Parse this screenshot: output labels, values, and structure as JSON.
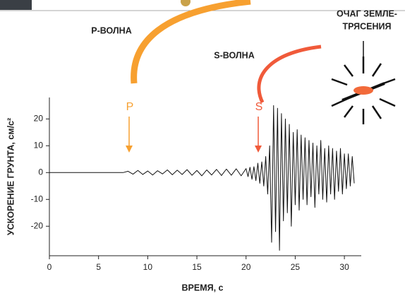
{
  "chart_data": {
    "type": "line",
    "x_label": "ВРЕМЯ, с",
    "y_label": "УСКОРЕНИЕ ГРУНТА, см/с²",
    "annotations": [
      "P-ВОЛНА",
      "S-ВОЛНА",
      "P",
      "S",
      "ОЧАГ ЗЕМЛЕ-",
      "ТРЯСЕНИЯ"
    ],
    "color": "#111111",
    "xlim": [
      0,
      31.5
    ],
    "ylim": [
      -31,
      28
    ],
    "xticks": [
      0,
      5,
      10,
      15,
      20,
      25,
      30
    ],
    "yticks": [
      -20,
      -10,
      0,
      10,
      20
    ],
    "x": [
      0,
      0.5,
      1,
      1.5,
      2,
      2.5,
      3,
      3.5,
      4,
      4.5,
      5,
      5.5,
      6,
      6.5,
      7,
      7.5,
      8,
      8.5,
      9,
      9.5,
      10,
      10.5,
      11,
      11.5,
      12,
      12.5,
      13,
      13.5,
      14,
      14.5,
      15,
      15.5,
      16,
      16.5,
      17,
      17.5,
      18,
      18.5,
      19,
      19.5,
      20,
      20.2,
      20.4,
      20.6,
      20.8,
      21,
      21.2,
      21.4,
      21.6,
      21.8,
      22,
      22.2,
      22.4,
      22.6,
      22.8,
      23,
      23.2,
      23.4,
      23.6,
      23.8,
      24,
      24.2,
      24.4,
      24.6,
      24.8,
      25,
      25.2,
      25.4,
      25.6,
      25.8,
      26,
      26.2,
      26.4,
      26.6,
      26.8,
      27,
      27.2,
      27.4,
      27.6,
      27.8,
      28,
      28.2,
      28.4,
      28.6,
      28.8,
      29,
      29.2,
      29.4,
      29.6,
      29.8,
      30,
      30.2,
      30.4,
      30.6,
      30.8,
      31
    ],
    "values": [
      0,
      0,
      0,
      0,
      0,
      0,
      0,
      0,
      0,
      0,
      0,
      0,
      0,
      0,
      0,
      0,
      0.5,
      -0.6,
      0.8,
      -0.7,
      0.6,
      -0.9,
      0.7,
      -0.5,
      1,
      -0.8,
      0.9,
      -0.7,
      1.1,
      -1,
      0.8,
      -1.2,
      1,
      -0.9,
      1.2,
      -1.1,
      1.3,
      -1,
      1.4,
      -1.2,
      1.5,
      -1.5,
      2,
      -2.5,
      2.2,
      -3,
      3.5,
      -4,
      4,
      -5,
      6,
      -8,
      10,
      -26,
      25,
      -22,
      24,
      -29,
      22,
      -18,
      20,
      -15,
      18,
      -20,
      15,
      -12,
      16,
      -14,
      14,
      -10,
      13,
      -12,
      12,
      -9,
      11,
      -13,
      10,
      -8,
      12,
      -10,
      9,
      -11,
      10,
      -8,
      9,
      -10,
      8,
      -7,
      9,
      -8,
      7,
      -6,
      7,
      -5,
      6,
      -4
    ]
  }
}
